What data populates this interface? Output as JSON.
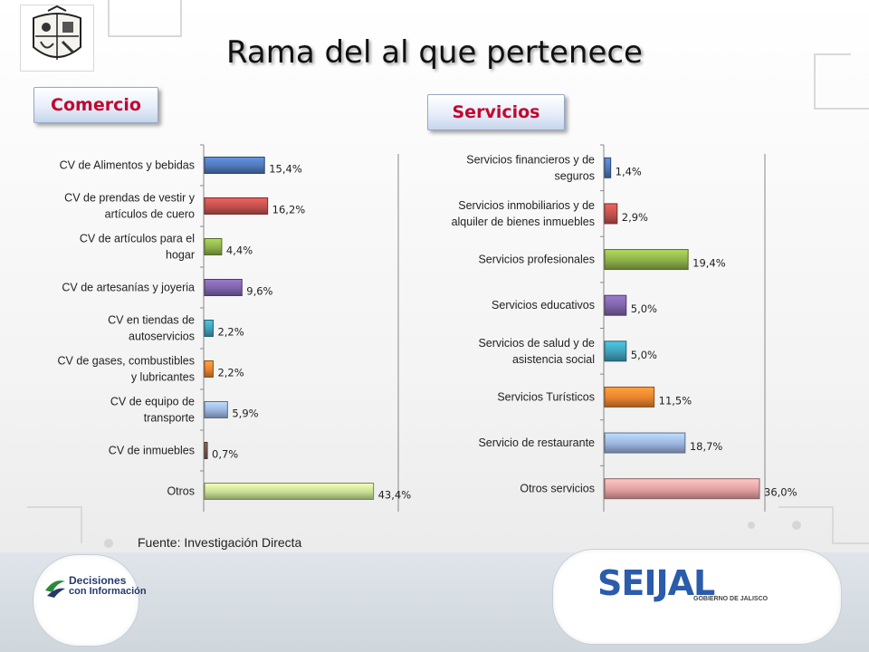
{
  "title": "Rama del al que pertenece",
  "source": "Fuente: Investigación Directa",
  "left_section_label": "Comercio",
  "right_section_label": "Servicios",
  "footer": {
    "decisiones_line1": "Decisiones",
    "decisiones_line2": "con Información",
    "seijal_logo": "SEIJAL",
    "seijal_sub": "GOBIERNO DE JALISCO"
  },
  "colors": {
    "title_red": "#c0082f",
    "blue": "#4f77b8",
    "red": "#c0504d",
    "green": "#8db04a",
    "purple": "#7d62a8",
    "teal": "#3f9fb8",
    "orange": "#e8822e",
    "light_blue": "#9ab3dd",
    "dark_brown": "#7a5a4a",
    "light_green": "#c6de93",
    "pink": "#e2a0a0"
  },
  "chart_data": [
    {
      "type": "bar",
      "orientation": "horizontal",
      "categories": [
        [
          "CV de Alimentos y bebidas"
        ],
        [
          "CV de prendas de vestir y",
          "artículos de cuero"
        ],
        [
          "CV de artículos para el",
          "hogar"
        ],
        [
          "CV de artesanías y joyeria"
        ],
        [
          "CV en tiendas de",
          "autoservicios"
        ],
        [
          "CV de gases, combustibles",
          "y lubricantes"
        ],
        [
          "CV de equipo de",
          "transporte"
        ],
        [
          "CV de inmuebles"
        ],
        [
          "Otros"
        ]
      ],
      "values": [
        15.4,
        16.2,
        4.4,
        9.6,
        2.2,
        2.2,
        5.9,
        0.7,
        43.4
      ],
      "value_labels": [
        "15,4%",
        "16,2%",
        "4,4%",
        "9,6%",
        "2,2%",
        "2,2%",
        "5,9%",
        "0,7%",
        "43,4%"
      ],
      "colors": [
        "#4f77b8",
        "#c0504d",
        "#8db04a",
        "#7d62a8",
        "#3f9fb8",
        "#e8822e",
        "#9ab3dd",
        "#7a5a4a",
        "#c6de93"
      ],
      "xlim": [
        0,
        50
      ],
      "title": "Comercio"
    },
    {
      "type": "bar",
      "orientation": "horizontal",
      "categories": [
        [
          "Servicios financieros y de",
          "seguros"
        ],
        [
          "Servicios inmobiliarios y de",
          "alquiler de bienes inmuebles"
        ],
        [
          "Servicios profesionales"
        ],
        [
          "Servicios educativos"
        ],
        [
          "Servicios de salud y de",
          "asistencia social"
        ],
        [
          "Servicios Turísticos"
        ],
        [
          "Servicio de restaurante"
        ],
        [
          "Otros servicios"
        ]
      ],
      "values": [
        1.4,
        2.9,
        19.4,
        5.0,
        5.0,
        11.5,
        18.7,
        36.0
      ],
      "value_labels": [
        "1,4%",
        "2,9%",
        "19,4%",
        "5,0%",
        "5,0%",
        "11,5%",
        "18,7%",
        "36,0%"
      ],
      "colors": [
        "#4f77b8",
        "#c0504d",
        "#8db04a",
        "#7d62a8",
        "#3f9fb8",
        "#e8822e",
        "#9ab3dd",
        "#e2a0a0"
      ],
      "xlim": [
        0,
        40
      ],
      "title": "Servicios"
    }
  ]
}
